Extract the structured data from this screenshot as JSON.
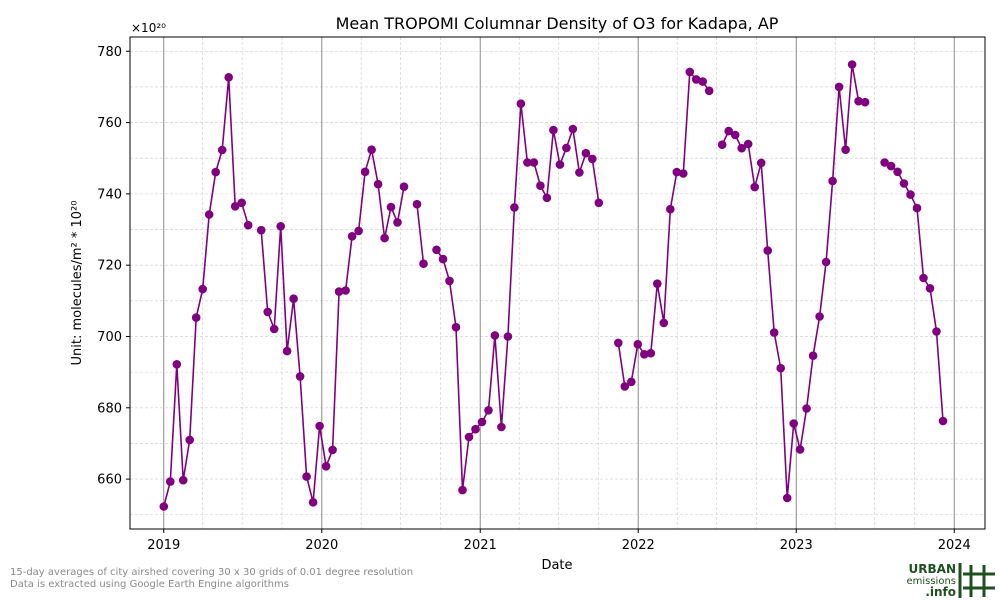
{
  "chart_data": {
    "type": "line",
    "title": "Mean TROPOMI Columnar Density of O3 for Kadapa, AP",
    "xlabel": "Date",
    "ylabel": "Unit: molecules/m² * 10²⁰",
    "multiplier": "×10²⁰",
    "x_ticks": [
      "2019",
      "2020",
      "2021",
      "2022",
      "2023",
      "2024"
    ],
    "y_ticks": [
      660,
      680,
      700,
      720,
      740,
      760,
      780
    ],
    "xlim": [
      "2018-10-15",
      "2024-03-12"
    ],
    "ylim": [
      646,
      784
    ],
    "grid": true,
    "line_color": "#800080",
    "year_line_color": "#8c8c8c",
    "series": [
      {
        "points": [
          [
            "2019-01-01",
            652.3
          ],
          [
            "2019-01-16",
            659.3
          ],
          [
            "2019-01-31",
            692.2
          ],
          [
            "2019-02-15",
            659.7
          ],
          [
            "2019-03-02",
            671.0
          ],
          [
            "2019-03-17",
            705.3
          ],
          [
            "2019-04-01",
            713.3
          ],
          [
            "2019-04-16",
            734.2
          ],
          [
            "2019-05-01",
            746.1
          ],
          [
            "2019-05-16",
            752.3
          ],
          [
            "2019-05-31",
            772.7
          ],
          [
            "2019-06-15",
            736.5
          ],
          [
            "2019-06-30",
            737.5
          ],
          [
            "2019-07-15",
            731.2
          ],
          null,
          [
            "2019-08-14",
            729.8
          ],
          [
            "2019-08-29",
            706.9
          ],
          [
            "2019-09-13",
            702.1
          ],
          [
            "2019-09-28",
            730.9
          ],
          [
            "2019-10-13",
            695.9
          ],
          [
            "2019-10-28",
            710.6
          ],
          [
            "2019-11-12",
            688.8
          ],
          [
            "2019-11-27",
            660.7
          ],
          [
            "2019-12-12",
            653.5
          ],
          [
            "2019-12-27",
            674.9
          ],
          [
            "2020-01-11",
            663.6
          ],
          [
            "2020-01-26",
            668.2
          ],
          [
            "2020-02-10",
            712.6
          ],
          [
            "2020-02-25",
            712.9
          ],
          [
            "2020-03-11",
            728.1
          ],
          [
            "2020-03-26",
            729.6
          ],
          [
            "2020-04-10",
            746.2
          ],
          [
            "2020-04-25",
            752.4
          ],
          [
            "2020-05-10",
            742.7
          ],
          [
            "2020-05-25",
            727.6
          ],
          [
            "2020-06-09",
            736.3
          ],
          [
            "2020-06-24",
            732.0
          ],
          [
            "2020-07-09",
            742.0
          ],
          null,
          [
            "2020-08-08",
            737.1
          ],
          [
            "2020-08-23",
            720.4
          ],
          null,
          [
            "2020-09-22",
            724.3
          ],
          [
            "2020-10-07",
            721.7
          ],
          [
            "2020-10-22",
            715.6
          ],
          [
            "2020-11-06",
            702.6
          ],
          [
            "2020-11-21",
            656.9
          ],
          [
            "2020-12-06",
            671.8
          ],
          [
            "2020-12-21",
            674.0
          ],
          [
            "2021-01-05",
            676.0
          ],
          [
            "2021-01-20",
            679.3
          ],
          [
            "2021-02-04",
            700.3
          ],
          [
            "2021-02-19",
            674.6
          ],
          [
            "2021-03-06",
            700.0
          ],
          [
            "2021-03-21",
            736.2
          ],
          [
            "2021-04-05",
            765.3
          ],
          [
            "2021-04-20",
            748.8
          ],
          [
            "2021-05-05",
            748.8
          ],
          [
            "2021-05-20",
            742.3
          ],
          [
            "2021-06-04",
            738.9
          ],
          [
            "2021-06-19",
            757.9
          ],
          [
            "2021-07-04",
            748.2
          ],
          [
            "2021-07-19",
            752.9
          ],
          [
            "2021-08-03",
            758.2
          ],
          [
            "2021-08-18",
            746.0
          ],
          [
            "2021-09-02",
            751.4
          ],
          [
            "2021-09-17",
            749.8
          ],
          [
            "2021-10-02",
            737.5
          ],
          null,
          null,
          [
            "2021-11-16",
            698.2
          ],
          [
            "2021-12-01",
            686.0
          ],
          [
            "2021-12-16",
            687.3
          ],
          [
            "2021-12-31",
            697.8
          ],
          [
            "2022-01-15",
            695.0
          ],
          [
            "2022-01-30",
            695.3
          ],
          [
            "2022-02-14",
            714.8
          ],
          [
            "2022-03-01",
            703.8
          ],
          [
            "2022-03-16",
            735.7
          ],
          [
            "2022-03-31",
            746.1
          ],
          [
            "2022-04-15",
            745.7
          ],
          [
            "2022-04-30",
            774.2
          ],
          [
            "2022-05-15",
            772.1
          ],
          [
            "2022-05-30",
            771.5
          ],
          [
            "2022-06-14",
            768.9
          ],
          null,
          [
            "2022-07-14",
            753.8
          ],
          [
            "2022-07-29",
            757.6
          ],
          [
            "2022-08-13",
            756.5
          ],
          [
            "2022-08-28",
            752.8
          ],
          [
            "2022-09-12",
            754.0
          ],
          [
            "2022-09-27",
            741.9
          ],
          [
            "2022-10-12",
            748.7
          ],
          [
            "2022-10-27",
            724.1
          ],
          [
            "2022-11-11",
            701.1
          ],
          [
            "2022-11-26",
            691.1
          ],
          [
            "2022-12-11",
            654.7
          ],
          [
            "2022-12-26",
            675.6
          ],
          [
            "2023-01-10",
            668.3
          ],
          [
            "2023-01-25",
            679.8
          ],
          [
            "2023-02-09",
            694.6
          ],
          [
            "2023-02-24",
            705.6
          ],
          [
            "2023-03-11",
            720.9
          ],
          [
            "2023-03-26",
            743.6
          ],
          [
            "2023-04-10",
            770.0
          ],
          [
            "2023-04-25",
            752.4
          ],
          [
            "2023-05-10",
            776.3
          ],
          [
            "2023-05-25",
            766.0
          ],
          [
            "2023-06-09",
            765.7
          ],
          null,
          null,
          [
            "2023-07-24",
            748.8
          ],
          [
            "2023-08-08",
            747.8
          ],
          [
            "2023-08-23",
            746.2
          ],
          [
            "2023-09-07",
            742.9
          ],
          [
            "2023-09-22",
            739.8
          ],
          [
            "2023-10-07",
            736.0
          ],
          [
            "2023-10-22",
            716.4
          ],
          [
            "2023-11-06",
            713.5
          ],
          [
            "2023-11-21",
            701.4
          ],
          [
            "2023-12-06",
            676.3
          ]
        ]
      }
    ]
  },
  "footnotes": {
    "line1": "15-day averages of city airshed covering 30 x 30 grids of 0.01 degree resolution",
    "line2": "Data is extracted using Google Earth Engine algorithms"
  },
  "logo": {
    "text_line1": "URBAN",
    "text_line2": "emissions",
    "text_line3": ".info",
    "color": "#1e4f1e"
  }
}
